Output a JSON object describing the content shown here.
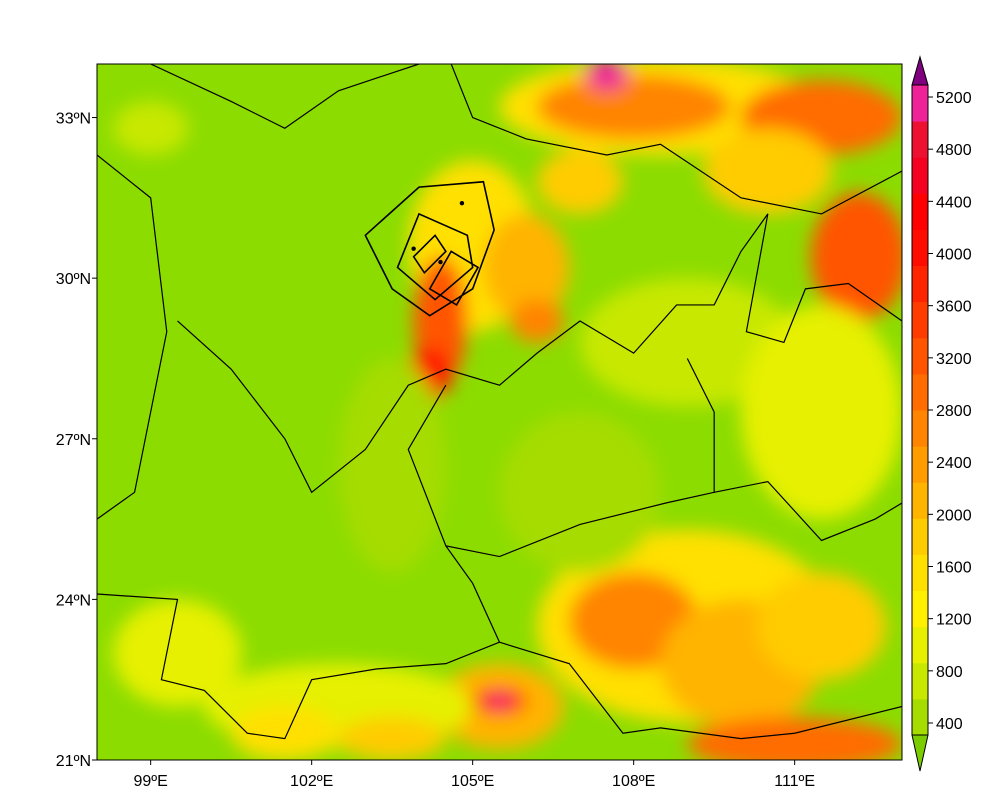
{
  "map": {
    "extent": {
      "lon_min": 98,
      "lon_max": 113,
      "lat_min": 21,
      "lat_max": 34
    },
    "x_ticks": [
      {
        "lon": 99,
        "label": "99ºE"
      },
      {
        "lon": 102,
        "label": "102ºE"
      },
      {
        "lon": 105,
        "label": "105ºE"
      },
      {
        "lon": 108,
        "label": "108ºE"
      },
      {
        "lon": 111,
        "label": "111ºE"
      }
    ],
    "y_ticks": [
      {
        "lat": 21,
        "label": "21ºN"
      },
      {
        "lat": 24,
        "label": "24ºN"
      },
      {
        "lat": 27,
        "label": "27ºN"
      },
      {
        "lat": 30,
        "label": "30ºN"
      },
      {
        "lat": 33,
        "label": "33ºN"
      }
    ],
    "background_color": "#8cdc00"
  },
  "colorbar": {
    "levels": [
      400,
      800,
      1200,
      1600,
      2000,
      2400,
      2800,
      3200,
      3600,
      4000,
      4400,
      4800,
      5200
    ],
    "labels": [
      "400",
      "800",
      "1200",
      "1600",
      "2000",
      "2400",
      "2800",
      "3200",
      "3600",
      "4000",
      "4400",
      "4800",
      "5200"
    ],
    "under_color": "#7ccd00",
    "over_color": "#800080",
    "colors": [
      "#a6dc00",
      "#c8e800",
      "#e6f000",
      "#fff000",
      "#ffe000",
      "#ffcc00",
      "#ffb400",
      "#ff9c00",
      "#ff8400",
      "#ff6c00",
      "#ff5400",
      "#ff3c00",
      "#ff2400",
      "#ff0c00",
      "#ff0000",
      "#f40020",
      "#ee1030",
      "#ee2299"
    ]
  }
}
